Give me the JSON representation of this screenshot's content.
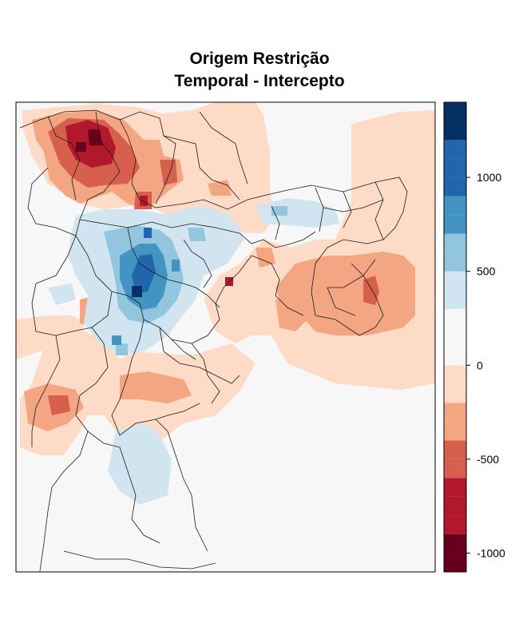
{
  "title": {
    "line1": "Origem Restrição",
    "line2": "Temporal - Intercepto"
  },
  "legend": {
    "breaks": [
      -1100,
      -1000,
      -900,
      -800,
      -700,
      -600,
      -500,
      -400,
      -300,
      -200,
      -100,
      0,
      100,
      200,
      300,
      400,
      500,
      600,
      700,
      800,
      900,
      1000,
      1100,
      1200,
      1300,
      1400
    ],
    "tick_values": [
      1000,
      500,
      0,
      -500,
      -1000
    ],
    "tick_labels": [
      "1000",
      "500",
      "0",
      "-500",
      "-1000"
    ],
    "colors": [
      "#67001f",
      "#b2182b",
      "#d6604d",
      "#f4a582",
      "#fddbc7",
      "#f7f7f7",
      "#d1e5f0",
      "#92c5de",
      "#4393c3",
      "#2166ac",
      "#053061"
    ]
  },
  "map": {
    "background_color": "#f7f7f7",
    "boundary_color": "#1a1a1a"
  }
}
